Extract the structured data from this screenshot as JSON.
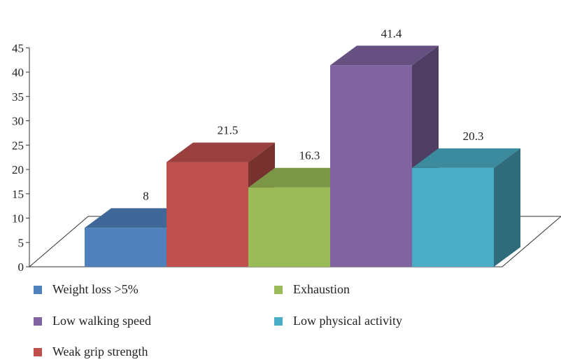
{
  "chart_data": {
    "type": "bar",
    "categories": [
      "Weight loss >5%",
      "Weak grip strength",
      "Exhaustion",
      "Low walking speed",
      "Low physical activity"
    ],
    "values": [
      8,
      21.5,
      16.3,
      41.4,
      20.3
    ],
    "data_labels": [
      "8",
      "21.5",
      "16.3",
      "41.4",
      "20.3"
    ],
    "colors": [
      "#4f81bd",
      "#c0504d",
      "#9bbb59",
      "#8064a2",
      "#4bacc6"
    ],
    "yticks": [
      "0",
      "5",
      "10",
      "15",
      "20",
      "25",
      "30",
      "35",
      "40",
      "45"
    ],
    "ylim": [
      0,
      45
    ],
    "title": "",
    "xlabel": "",
    "ylabel": "",
    "three_d": true,
    "grid": false,
    "legend_position": "bottom",
    "legend_order": [
      0,
      2,
      3,
      4,
      1
    ]
  }
}
